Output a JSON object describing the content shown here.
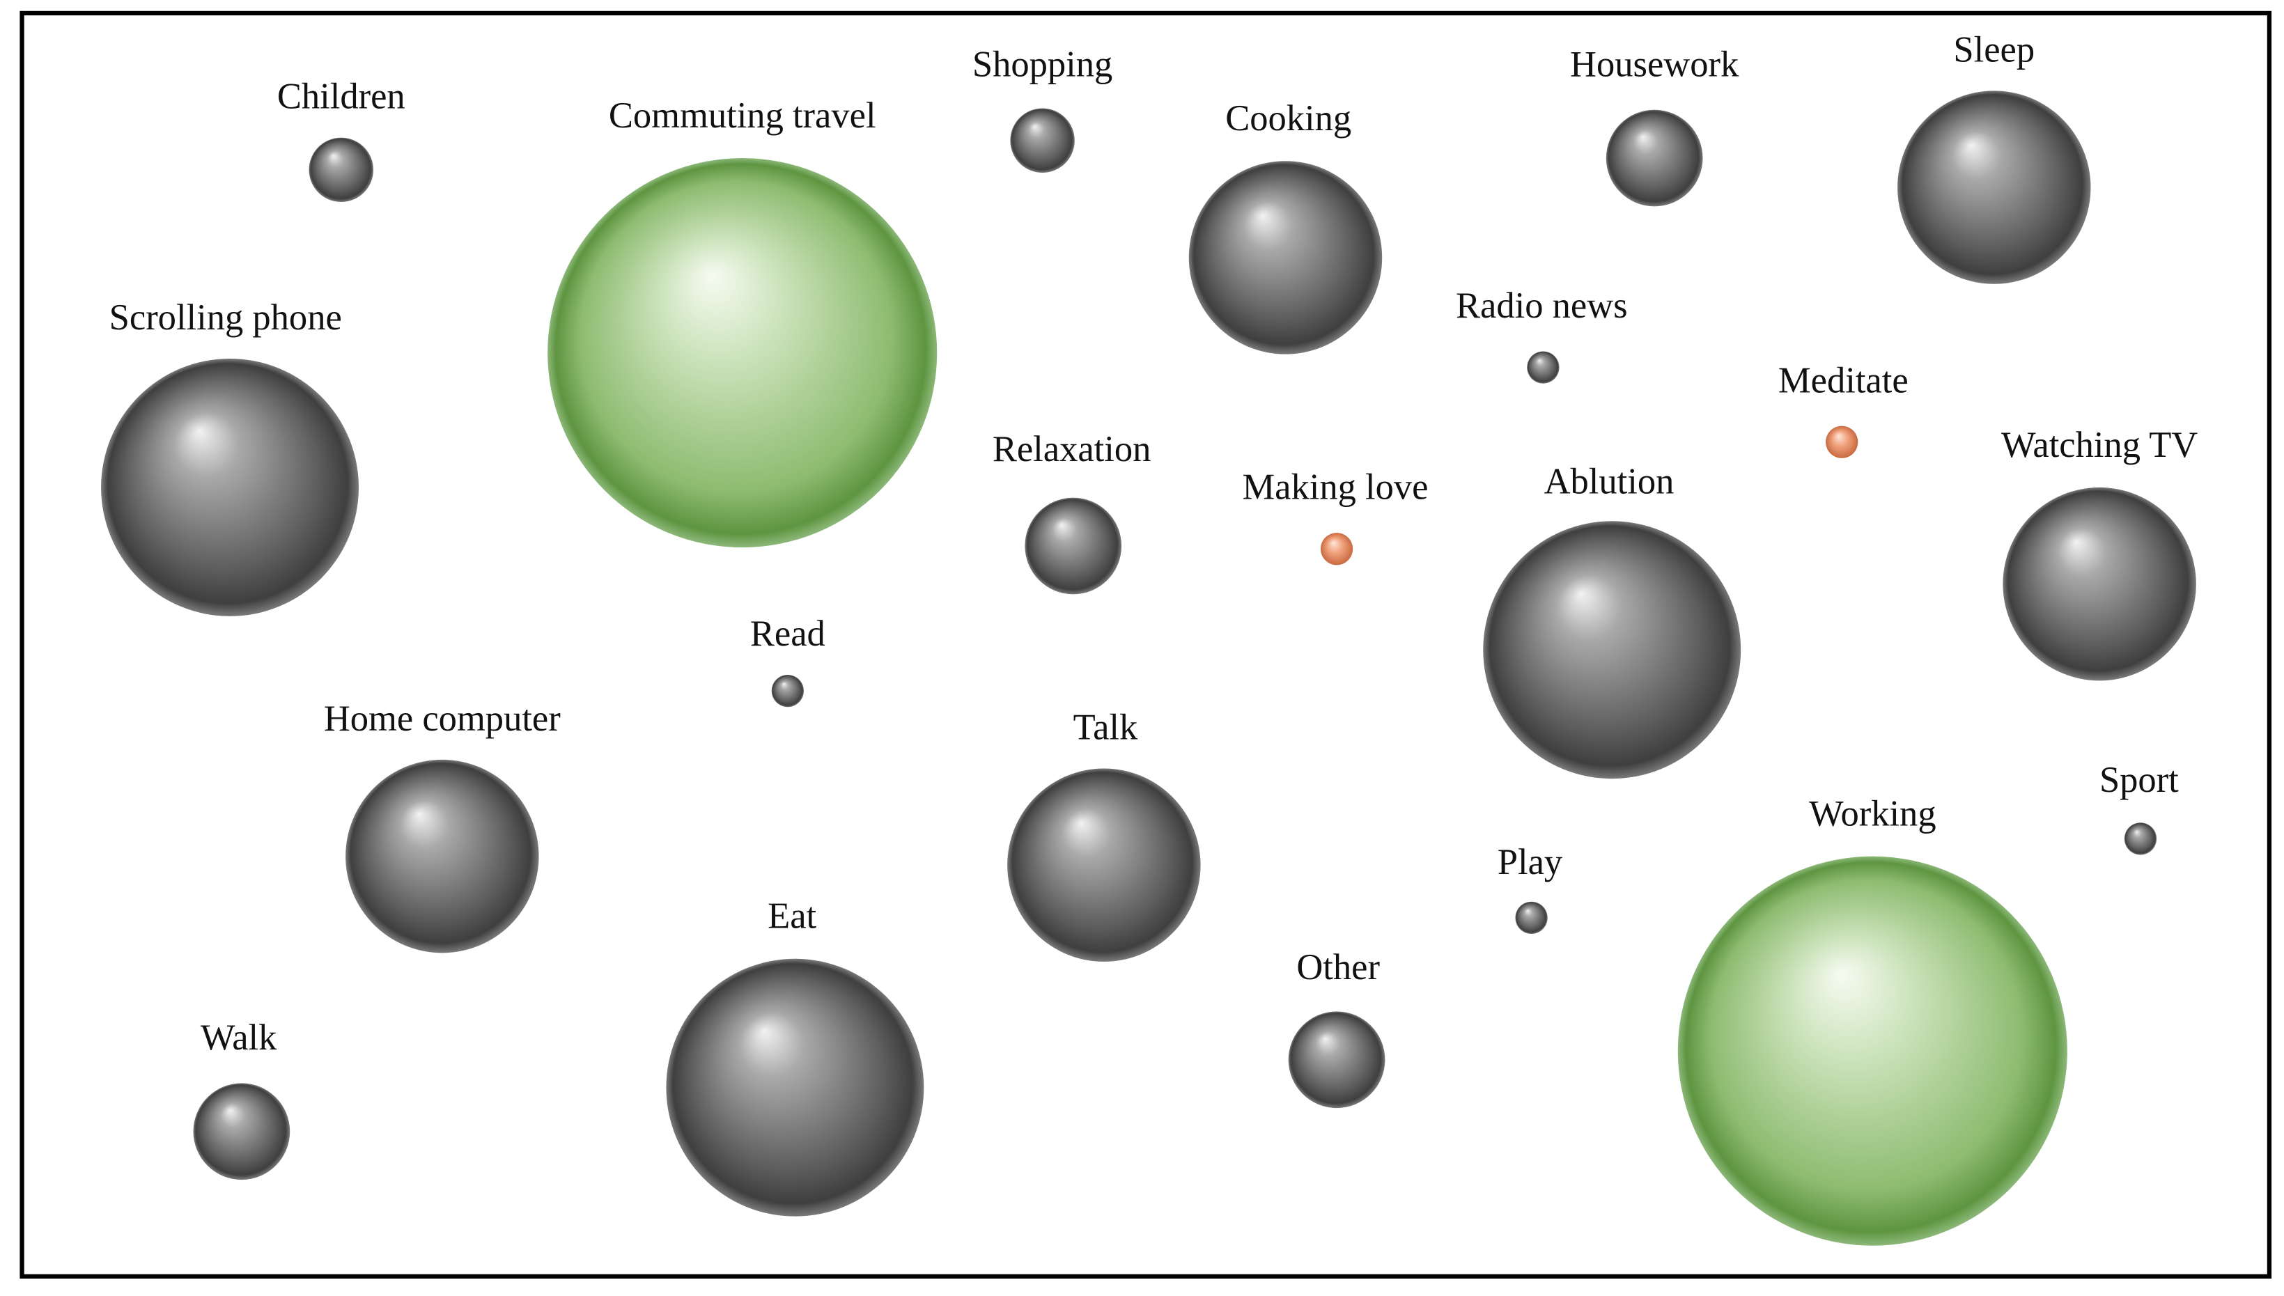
{
  "nodes": [
    {
      "label": "Children"
    },
    {
      "label": "Commuting travel"
    },
    {
      "label": "Shopping"
    },
    {
      "label": "Cooking"
    },
    {
      "label": "Housework"
    },
    {
      "label": "Sleep"
    },
    {
      "label": "Scrolling phone"
    },
    {
      "label": "Radio news"
    },
    {
      "label": "Meditate"
    },
    {
      "label": "Watching TV"
    },
    {
      "label": "Relaxation"
    },
    {
      "label": "Making love"
    },
    {
      "label": "Ablution"
    },
    {
      "label": "Read"
    },
    {
      "label": "Home computer"
    },
    {
      "label": "Talk"
    },
    {
      "label": "Sport"
    },
    {
      "label": "Working"
    },
    {
      "label": "Play"
    },
    {
      "label": "Eat"
    },
    {
      "label": "Other"
    },
    {
      "label": "Walk"
    }
  ]
}
